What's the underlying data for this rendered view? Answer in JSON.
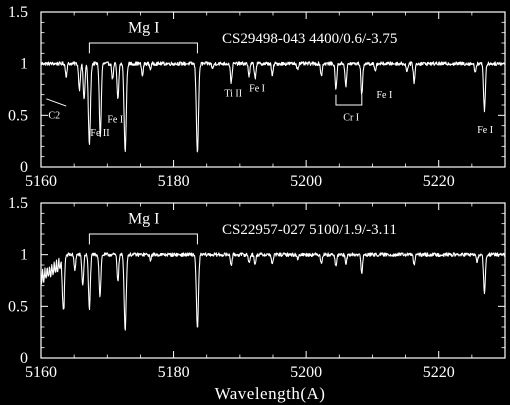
{
  "chart_data": {
    "type": "line",
    "xlabel": "Wavelength(A)",
    "colors": {
      "background": "#000000",
      "foreground": "#ffffff"
    },
    "shared_x_ticks": [
      5160,
      5180,
      5200,
      5220
    ],
    "panels": [
      {
        "id": "top",
        "header": "CS29498-043   4400/0.6/-3.75",
        "xlim": [
          5160,
          5230
        ],
        "ylim": [
          0,
          1.5
        ],
        "yticks": [
          "0",
          "0.5",
          "1",
          "1.5"
        ],
        "xticks": [
          "5160",
          "5180",
          "5200",
          "5220"
        ],
        "continuum": 1.0,
        "leftEdge": {
          "start": 5160,
          "end": 5163.5,
          "startValue": 1.0,
          "endValue": 1.0,
          "depth": 0.0
        },
        "lines": [
          {
            "x": 5163.8,
            "depth": 0.12
          },
          {
            "x": 5165.8,
            "depth": 0.25
          },
          {
            "x": 5166.5,
            "depth": 0.35
          },
          {
            "x": 5167.3,
            "depth": 0.78
          },
          {
            "x": 5168.9,
            "depth": 0.4
          },
          {
            "x": 5169.0,
            "depth": 0.35
          },
          {
            "x": 5170.8,
            "depth": 0.15
          },
          {
            "x": 5171.6,
            "depth": 0.35
          },
          {
            "x": 5172.7,
            "depth": 0.85
          },
          {
            "x": 5175.3,
            "depth": 0.12
          },
          {
            "x": 5176.5,
            "depth": 0.05
          },
          {
            "x": 5183.6,
            "depth": 0.85
          },
          {
            "x": 5185.9,
            "depth": 0.05
          },
          {
            "x": 5188.7,
            "depth": 0.18
          },
          {
            "x": 5191.4,
            "depth": 0.12
          },
          {
            "x": 5192.3,
            "depth": 0.14
          },
          {
            "x": 5194.9,
            "depth": 0.12
          },
          {
            "x": 5198.7,
            "depth": 0.05
          },
          {
            "x": 5202.3,
            "depth": 0.12
          },
          {
            "x": 5204.5,
            "depth": 0.25
          },
          {
            "x": 5206.0,
            "depth": 0.22
          },
          {
            "x": 5208.4,
            "depth": 0.3
          },
          {
            "x": 5210.4,
            "depth": 0.08
          },
          {
            "x": 5215.2,
            "depth": 0.08
          },
          {
            "x": 5216.3,
            "depth": 0.18
          },
          {
            "x": 5226.9,
            "depth": 0.45
          },
          {
            "x": 5225.5,
            "depth": 0.08
          }
        ],
        "labels": [
          {
            "text": "Mg I",
            "x": 5175.5,
            "y": 1.3,
            "size": "big"
          },
          {
            "text": "Ti II",
            "x": 5189.0,
            "y": 0.68,
            "size": "small"
          },
          {
            "text": "Fe I",
            "x": 5192.6,
            "y": 0.73,
            "size": "small"
          },
          {
            "text": "Fe I",
            "x": 5211.8,
            "y": 0.67,
            "size": "small"
          },
          {
            "text": "Cr I",
            "x": 5206.8,
            "y": 0.45,
            "size": "small"
          },
          {
            "text": "Fe I",
            "x": 5171.2,
            "y": 0.43,
            "size": "small"
          },
          {
            "text": "Fe II",
            "x": 5168.9,
            "y": 0.3,
            "size": "small"
          },
          {
            "text": "C2",
            "x": 5162.0,
            "y": 0.47,
            "size": "small"
          },
          {
            "text": "Fe I",
            "x": 5227.0,
            "y": 0.33,
            "size": "small"
          }
        ],
        "brackets": [
          {
            "x1": 5167.3,
            "x2": 5183.6,
            "y": 1.2,
            "leg": 0.1,
            "dir": "down"
          },
          {
            "x1": 5204.5,
            "x2": 5208.4,
            "y": 0.6,
            "leg": 0.1,
            "dir": "up"
          }
        ],
        "pointers": [
          {
            "x1": 5160.8,
            "y1": 0.66,
            "x2": 5163.8,
            "y2": 0.59
          }
        ]
      },
      {
        "id": "bottom",
        "header": "CS22957-027   5100/1.9/-3.11",
        "xlim": [
          5160,
          5230
        ],
        "ylim": [
          0,
          1.5
        ],
        "yticks": [
          "0",
          "0.5",
          "1",
          "1.5"
        ],
        "xticks": [
          "5160",
          "5180",
          "5200",
          "5220"
        ],
        "continuum": 1.0,
        "leftEdge": {
          "start": 5160,
          "end": 5163.5,
          "startValue": 0.85,
          "endValue": 1.0,
          "depth": 0.12
        },
        "lines": [
          {
            "x": 5163.4,
            "depth": 0.5
          },
          {
            "x": 5165.1,
            "depth": 0.15
          },
          {
            "x": 5166.3,
            "depth": 0.3
          },
          {
            "x": 5167.3,
            "depth": 0.52
          },
          {
            "x": 5168.9,
            "depth": 0.4
          },
          {
            "x": 5171.6,
            "depth": 0.25
          },
          {
            "x": 5172.7,
            "depth": 0.72
          },
          {
            "x": 5176.5,
            "depth": 0.05
          },
          {
            "x": 5183.6,
            "depth": 0.72
          },
          {
            "x": 5188.7,
            "depth": 0.1
          },
          {
            "x": 5191.4,
            "depth": 0.08
          },
          {
            "x": 5192.3,
            "depth": 0.1
          },
          {
            "x": 5194.9,
            "depth": 0.1
          },
          {
            "x": 5198.7,
            "depth": 0.04
          },
          {
            "x": 5202.3,
            "depth": 0.08
          },
          {
            "x": 5204.5,
            "depth": 0.12
          },
          {
            "x": 5206.0,
            "depth": 0.1
          },
          {
            "x": 5208.4,
            "depth": 0.18
          },
          {
            "x": 5216.3,
            "depth": 0.1
          },
          {
            "x": 5226.9,
            "depth": 0.38
          },
          {
            "x": 5225.8,
            "depth": 0.08
          }
        ],
        "labels": [
          {
            "text": "Mg I",
            "x": 5175.5,
            "y": 1.3,
            "size": "big"
          }
        ],
        "brackets": [
          {
            "x1": 5167.3,
            "x2": 5183.6,
            "y": 1.2,
            "leg": 0.1,
            "dir": "down"
          }
        ],
        "pointers": []
      }
    ]
  }
}
